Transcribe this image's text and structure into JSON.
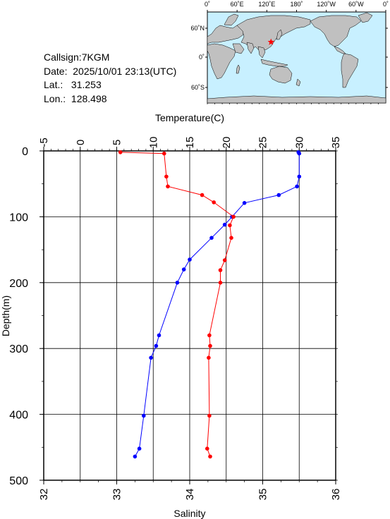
{
  "station": {
    "callsign_label": "Callsign:",
    "callsign": "7KGM",
    "date_label": "Date:",
    "date": "2025/10/01 23:13(UTC)",
    "lat_label": "Lat.:",
    "lat": "31.253",
    "lon_label": "Lon.:",
    "lon": "128.498"
  },
  "map": {
    "lon_labels": [
      "0˚",
      "60˚E",
      "120˚E",
      "180˚",
      "120˚W",
      "60˚W",
      "0˚"
    ],
    "lat_labels": [
      "60˚N",
      "0˚",
      "60˚S"
    ],
    "ocean_color": "#c8f0ff",
    "land_color": "#c0c0c0",
    "marker_color": "#ff0000"
  },
  "chart_data": {
    "type": "line",
    "title": "",
    "ylabel": "Depth(m)",
    "ylim": [
      0,
      500
    ],
    "y_ticks": [
      0,
      100,
      200,
      300,
      400,
      500
    ],
    "y_inverted": true,
    "x_top": {
      "label": "Temperature(C)",
      "lim": [
        -5,
        35
      ],
      "ticks": [
        -5,
        0,
        5,
        10,
        15,
        20,
        25,
        30,
        35
      ]
    },
    "x_bottom": {
      "label": "Salinity",
      "lim": [
        32,
        36
      ],
      "ticks": [
        32,
        33,
        34,
        35,
        36
      ]
    },
    "grid": true,
    "series": [
      {
        "axis": "top",
        "color": "#0000ff",
        "points": [
          {
            "x": 29.9,
            "y": 2
          },
          {
            "x": 30.0,
            "y": 4
          },
          {
            "x": 30.0,
            "y": 39
          },
          {
            "x": 29.7,
            "y": 54
          },
          {
            "x": 27.2,
            "y": 67
          },
          {
            "x": 22.5,
            "y": 79
          },
          {
            "x": 20.8,
            "y": 100
          },
          {
            "x": 19.8,
            "y": 112
          },
          {
            "x": 18.0,
            "y": 132
          },
          {
            "x": 15.0,
            "y": 165
          },
          {
            "x": 14.2,
            "y": 180
          },
          {
            "x": 13.3,
            "y": 200
          },
          {
            "x": 10.8,
            "y": 280
          },
          {
            "x": 10.4,
            "y": 296
          },
          {
            "x": 9.7,
            "y": 314
          },
          {
            "x": 8.7,
            "y": 402
          },
          {
            "x": 8.1,
            "y": 452
          },
          {
            "x": 7.5,
            "y": 464
          }
        ]
      },
      {
        "axis": "bottom",
        "color": "#ff0000",
        "points": [
          {
            "x": 33.05,
            "y": 2
          },
          {
            "x": 33.65,
            "y": 4
          },
          {
            "x": 33.68,
            "y": 39
          },
          {
            "x": 33.7,
            "y": 54
          },
          {
            "x": 34.17,
            "y": 67
          },
          {
            "x": 34.33,
            "y": 78
          },
          {
            "x": 34.6,
            "y": 100
          },
          {
            "x": 34.55,
            "y": 113
          },
          {
            "x": 34.57,
            "y": 132
          },
          {
            "x": 34.48,
            "y": 166
          },
          {
            "x": 34.42,
            "y": 181
          },
          {
            "x": 34.42,
            "y": 200
          },
          {
            "x": 34.27,
            "y": 280
          },
          {
            "x": 34.28,
            "y": 296
          },
          {
            "x": 34.26,
            "y": 314
          },
          {
            "x": 34.27,
            "y": 402
          },
          {
            "x": 34.24,
            "y": 452
          },
          {
            "x": 34.28,
            "y": 464
          }
        ]
      }
    ]
  }
}
